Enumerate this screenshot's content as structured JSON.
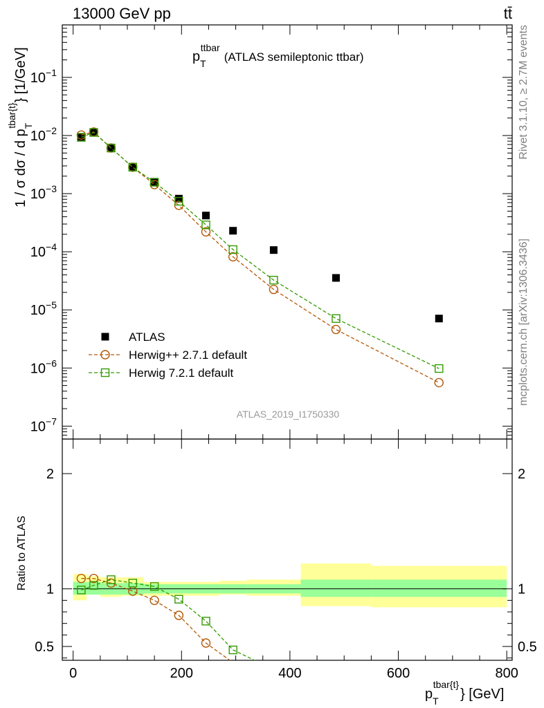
{
  "header": {
    "energy_label": "13000 GeV pp",
    "process_label": "tt̄"
  },
  "side_labels": {
    "rivet": "Rivet 3.1.10, ≥ 2.7M events",
    "mcplots": "mcplots.cern.ch [arXiv:1306.3436]"
  },
  "chart_data": [
    {
      "type": "scatter",
      "panel": "main",
      "title": {
        "p": "p",
        "sub": "T",
        "sup": "ttbar",
        "rest": "(ATLAS semileptonic ttbar)"
      },
      "ylabel": {
        "left": "1 / σ dσ / d p",
        "sup": "tbar{t}",
        "sub": "T",
        "right": "} [1/GeV]"
      },
      "yscale": "log",
      "xlim": [
        -20,
        810
      ],
      "ylim": [
        6e-08,
        0.8
      ],
      "y_ticks": [
        {
          "base": "10",
          "exp": "−1",
          "value": 0.1
        },
        {
          "base": "10",
          "exp": "−2",
          "value": 0.01
        },
        {
          "base": "10",
          "exp": "−3",
          "value": 0.001
        },
        {
          "base": "10",
          "exp": "−4",
          "value": 0.0001
        },
        {
          "base": "10",
          "exp": "−5",
          "value": 1e-05
        },
        {
          "base": "10",
          "exp": "−6",
          "value": 1e-06
        },
        {
          "base": "10",
          "exp": "−7",
          "value": 1e-07
        }
      ],
      "watermark": "ATLAS_2019_I1750330",
      "legend_position": "bottom-left",
      "series": [
        {
          "name": "ATLAS",
          "color": "#000000",
          "marker": "filled-square",
          "x": [
            15,
            38,
            70,
            110,
            150,
            195,
            245,
            295,
            370,
            485,
            675
          ],
          "y": [
            0.0095,
            0.0113,
            0.006,
            0.0029,
            0.0016,
            0.00082,
            0.00042,
            0.00023,
            0.000107,
            3.55e-05,
            7.1e-06
          ]
        },
        {
          "name": "Herwig++ 2.7.1 default",
          "color": "#b35806",
          "marker": "open-circle",
          "x": [
            15,
            38,
            70,
            110,
            150,
            195,
            245,
            295,
            370,
            485,
            675
          ],
          "y": [
            0.0102,
            0.0115,
            0.0061,
            0.00285,
            0.00143,
            0.00063,
            0.00022,
            8.2e-05,
            2.25e-05,
            4.6e-06,
            5.6e-07
          ]
        },
        {
          "name": "Herwig 7.2.1 default",
          "color": "#339900",
          "marker": "open-square",
          "x": [
            15,
            38,
            70,
            110,
            150,
            195,
            245,
            295,
            370,
            485,
            675
          ],
          "y": [
            0.0093,
            0.0113,
            0.0061,
            0.00285,
            0.00157,
            0.00074,
            0.00029,
            0.000109,
            3.25e-05,
            7.1e-06,
            9.8e-07
          ]
        }
      ]
    },
    {
      "type": "line",
      "panel": "ratio",
      "ylabel": "Ratio to ATLAS",
      "xlabel": {
        "p": "p",
        "sup": "tbar{t}",
        "sub": "T",
        "rest": "} [GeV]"
      },
      "xlim": [
        -20,
        810
      ],
      "ylim": [
        0.38,
        2.3
      ],
      "x_ticks": [
        0,
        200,
        400,
        600,
        800
      ],
      "y_ticks": [
        0.5,
        1,
        2
      ],
      "bins": [
        0,
        25,
        50,
        90,
        130,
        170,
        220,
        270,
        320,
        420,
        550,
        800
      ],
      "band_green": [
        [
          0.95,
          1.06
        ],
        [
          0.95,
          1.06
        ],
        [
          0.95,
          1.05
        ],
        [
          0.95,
          1.05
        ],
        [
          0.96,
          1.04
        ],
        [
          0.96,
          1.04
        ],
        [
          0.96,
          1.04
        ],
        [
          0.96,
          1.04
        ],
        [
          0.96,
          1.04
        ],
        [
          0.93,
          1.08
        ],
        [
          0.93,
          1.08
        ]
      ],
      "band_yellow": [
        [
          0.9,
          1.13
        ],
        [
          0.96,
          1.11
        ],
        [
          0.93,
          1.1
        ],
        [
          0.94,
          1.1
        ],
        [
          0.94,
          1.06
        ],
        [
          0.94,
          1.06
        ],
        [
          0.94,
          1.06
        ],
        [
          0.95,
          1.07
        ],
        [
          0.94,
          1.08
        ],
        [
          0.85,
          1.22
        ],
        [
          0.84,
          1.2
        ]
      ],
      "series": [
        {
          "name": "Herwig++ 2.7.1 default",
          "color": "#b35806",
          "marker": "open-circle",
          "x": [
            15,
            38,
            70,
            110,
            150,
            195,
            245,
            295
          ],
          "y": [
            1.09,
            1.09,
            1.05,
            0.98,
            0.9,
            0.77,
            0.53,
            0.36
          ]
        },
        {
          "name": "Herwig 7.2.1 default",
          "color": "#339900",
          "marker": "open-square",
          "x": [
            15,
            38,
            70,
            110,
            150,
            195,
            245,
            295,
            370
          ],
          "y": [
            0.99,
            1.03,
            1.08,
            1.05,
            1.02,
            0.91,
            0.72,
            0.47,
            0.3
          ]
        }
      ]
    }
  ]
}
